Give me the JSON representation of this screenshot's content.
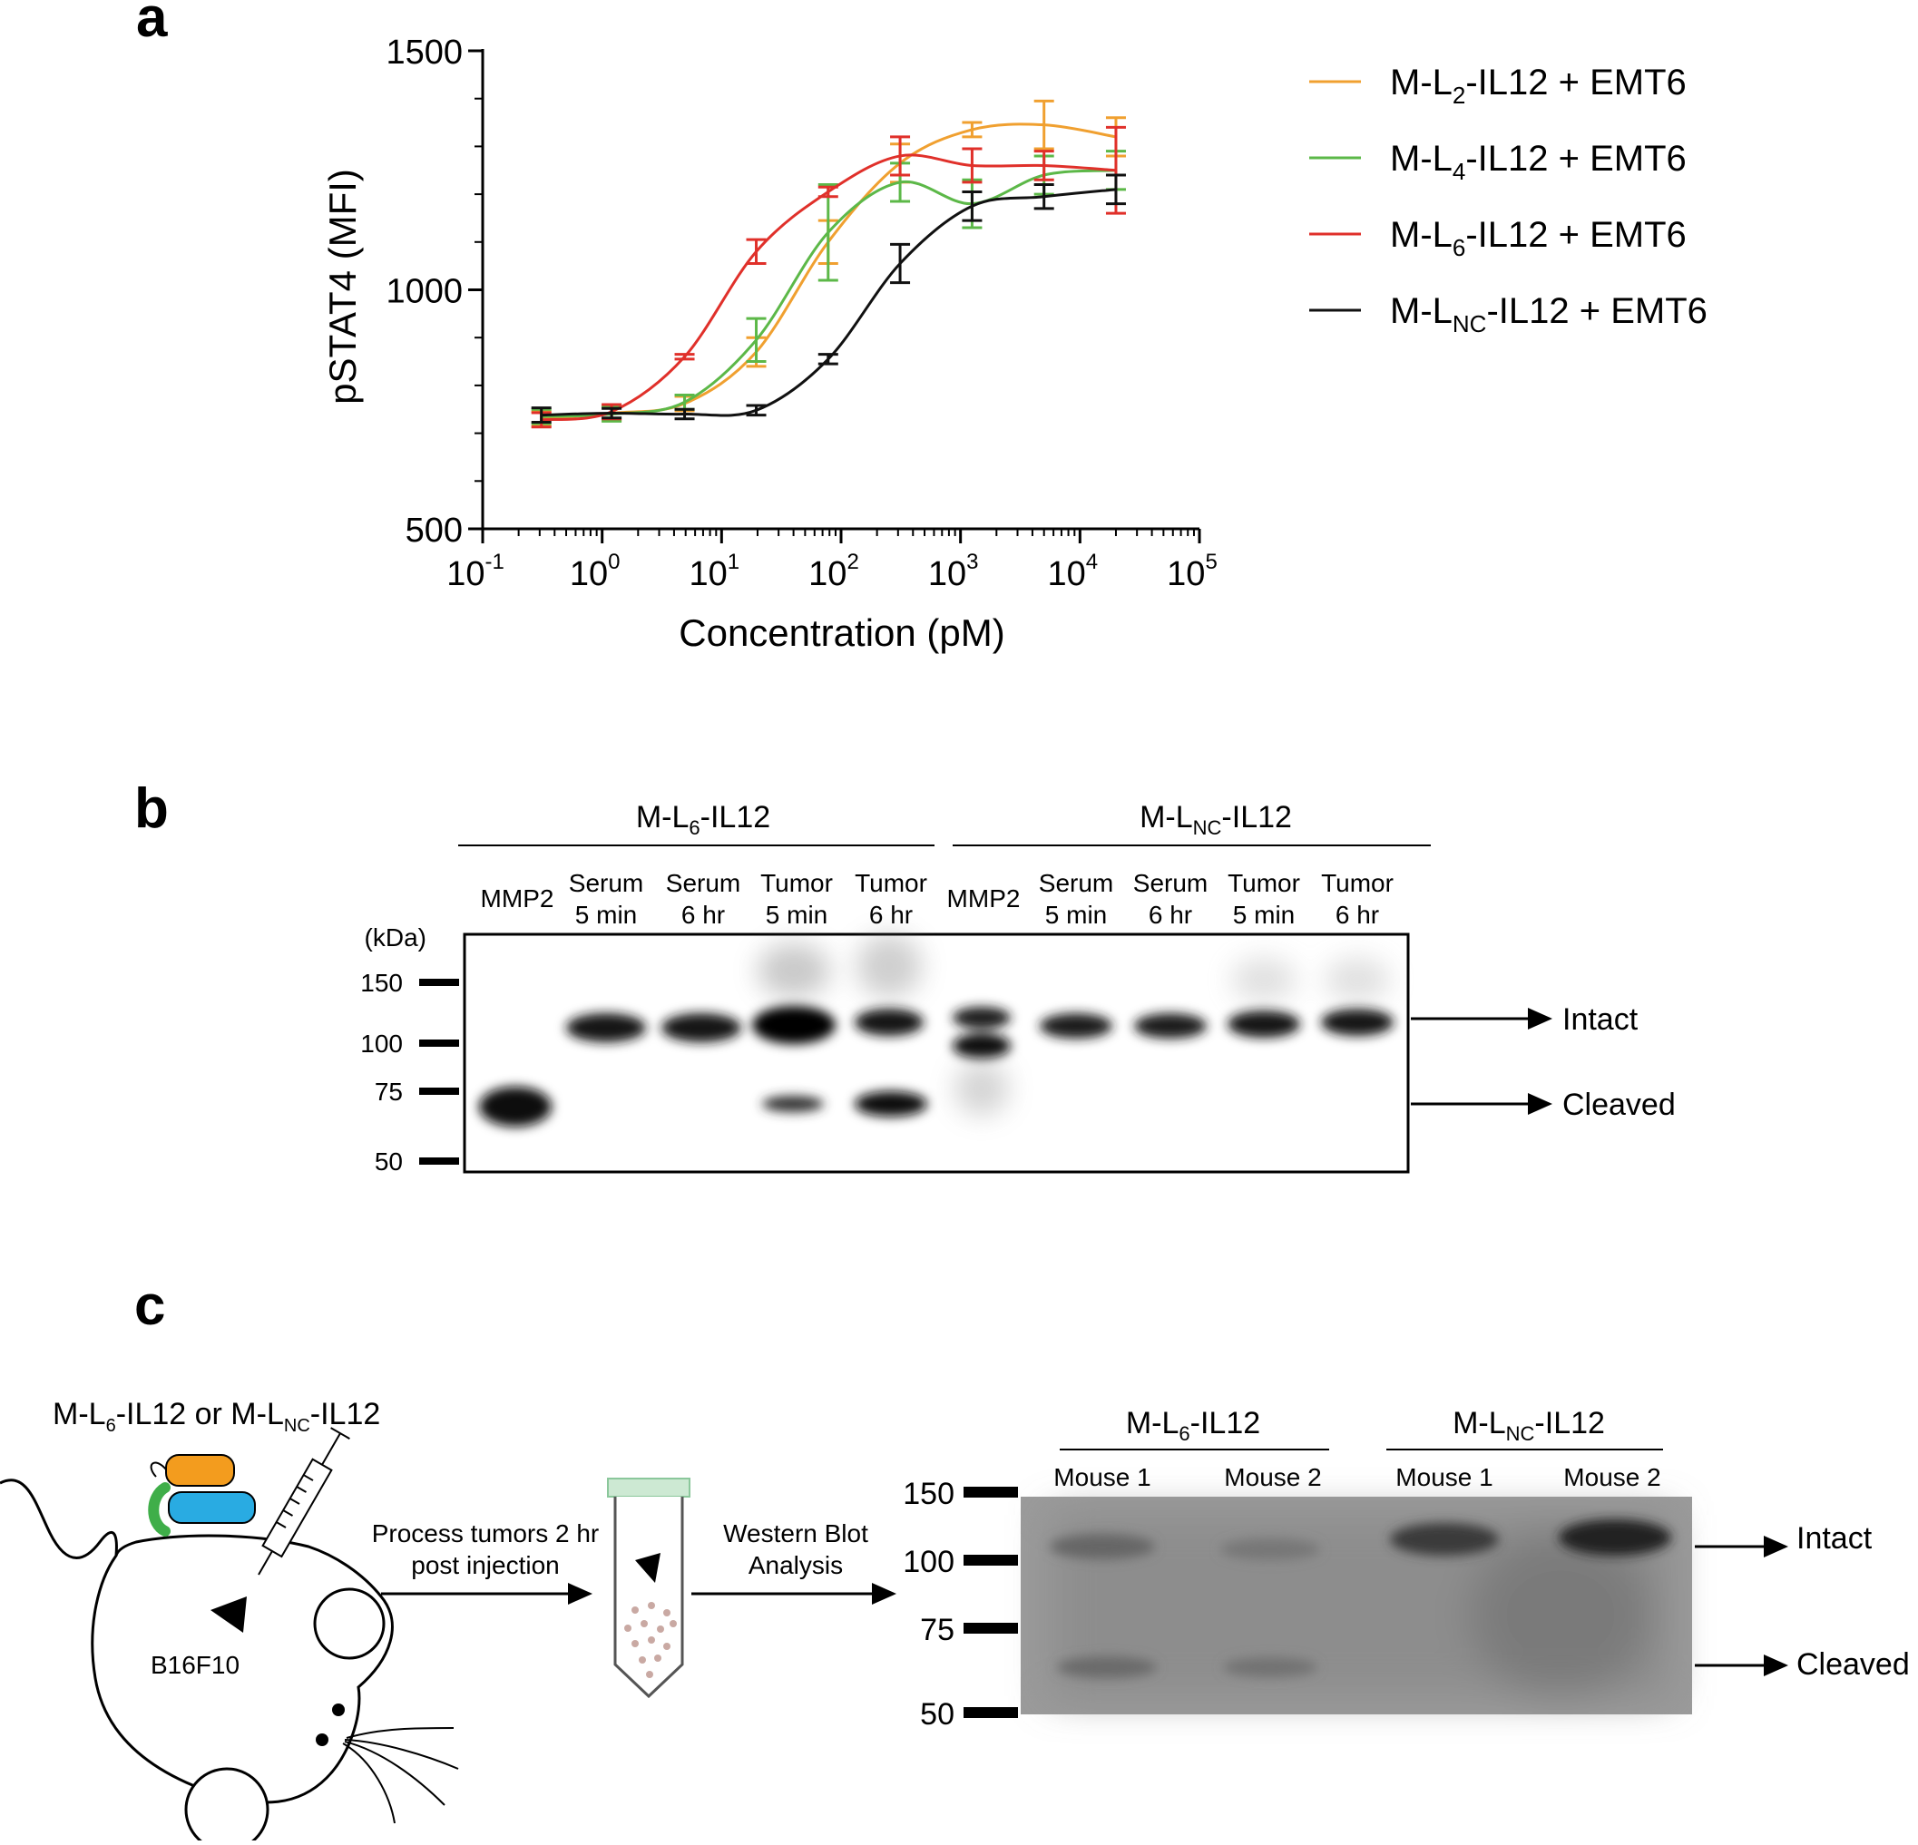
{
  "panel_labels": {
    "a": "a",
    "b": "b",
    "c": "c"
  },
  "colors": {
    "L2": "#f0a030",
    "L4": "#5cb848",
    "L6": "#e0302a",
    "LNC": "#111111"
  },
  "chart_data": {
    "type": "line",
    "xscale": "log",
    "ylabel": "pSTAT4 (MFI)",
    "xlabel": "Concentration (pM)",
    "ylim": [
      500,
      1500
    ],
    "xlim_exponent": [
      -1,
      5
    ],
    "y_ticks": [
      "500",
      "1000",
      "1500"
    ],
    "x_tick_base": "10",
    "x_tick_exponents": [
      "-1",
      "0",
      "1",
      "2",
      "3",
      "4",
      "5"
    ],
    "x": [
      0.31,
      1.2,
      4.9,
      19.5,
      78,
      312,
      1250,
      5000,
      20000
    ],
    "series": [
      {
        "key": "L2",
        "legend": {
          "pre": "M-L",
          "sub": "2",
          "post": "-IL12 + EMT6"
        },
        "values": [
          730,
          742,
          762,
          870,
          1100,
          1265,
          1335,
          1345,
          1320
        ],
        "errors": [
          15,
          15,
          15,
          30,
          45,
          40,
          15,
          50,
          40
        ]
      },
      {
        "key": "L4",
        "legend": {
          "pre": "M-L",
          "sub": "4",
          "post": "-IL12 + EMT6"
        },
        "values": [
          735,
          740,
          765,
          895,
          1120,
          1225,
          1180,
          1240,
          1250
        ],
        "errors": [
          15,
          15,
          15,
          45,
          100,
          40,
          50,
          40,
          40
        ]
      },
      {
        "key": "L6",
        "legend": {
          "pre": "M-L",
          "sub": "6",
          "post": "-IL12 + EMT6"
        },
        "values": [
          728,
          745,
          860,
          1080,
          1205,
          1280,
          1260,
          1260,
          1250
        ],
        "errors": [
          15,
          15,
          5,
          25,
          10,
          40,
          35,
          30,
          90
        ]
      },
      {
        "key": "LNC",
        "legend": {
          "pre": "M-L",
          "sub": "NC",
          "post": "-IL12 + EMT6"
        },
        "values": [
          738,
          742,
          740,
          748,
          855,
          1055,
          1175,
          1195,
          1210
        ],
        "errors": [
          15,
          10,
          10,
          10,
          10,
          40,
          30,
          25,
          30
        ]
      }
    ]
  },
  "blot_b": {
    "groups": [
      {
        "pre": "M-L",
        "sub": "6",
        "post": "-IL12"
      },
      {
        "pre": "M-L",
        "sub": "NC",
        "post": "-IL12"
      }
    ],
    "lanes": [
      [
        "MMP2",
        ""
      ],
      [
        "Serum",
        "5 min"
      ],
      [
        "Serum",
        "6 hr"
      ],
      [
        "Tumor",
        "5 min"
      ],
      [
        "Tumor",
        "6 hr"
      ],
      [
        "MMP2",
        ""
      ],
      [
        "Serum",
        "5 min"
      ],
      [
        "Serum",
        "6 hr"
      ],
      [
        "Tumor",
        "5 min"
      ],
      [
        "Tumor",
        "6 hr"
      ]
    ],
    "kda_label": "(kDa)",
    "markers": [
      "150",
      "100",
      "75",
      "50"
    ],
    "intact_label": "Intact",
    "cleaved_label": "Cleaved"
  },
  "panel_c": {
    "drug_label": {
      "pre1": "M-L",
      "sub1": "6",
      "mid": "-IL12 or M-L",
      "sub2": "NC",
      "post": "-IL12"
    },
    "tumor_label": "B16F10",
    "step1": [
      "Process tumors 2 hr",
      "post injection"
    ],
    "step2": [
      "Western Blot",
      "Analysis"
    ],
    "blot": {
      "groups": [
        {
          "pre": "M-L",
          "sub": "6",
          "post": "-IL12"
        },
        {
          "pre": "M-L",
          "sub": "NC",
          "post": "-IL12"
        }
      ],
      "lanes": [
        "Mouse 1",
        "Mouse 2",
        "Mouse 1",
        "Mouse 2"
      ],
      "markers": [
        "150",
        "100",
        "75",
        "50"
      ],
      "intact_label": "Intact",
      "cleaved_label": "Cleaved"
    }
  }
}
